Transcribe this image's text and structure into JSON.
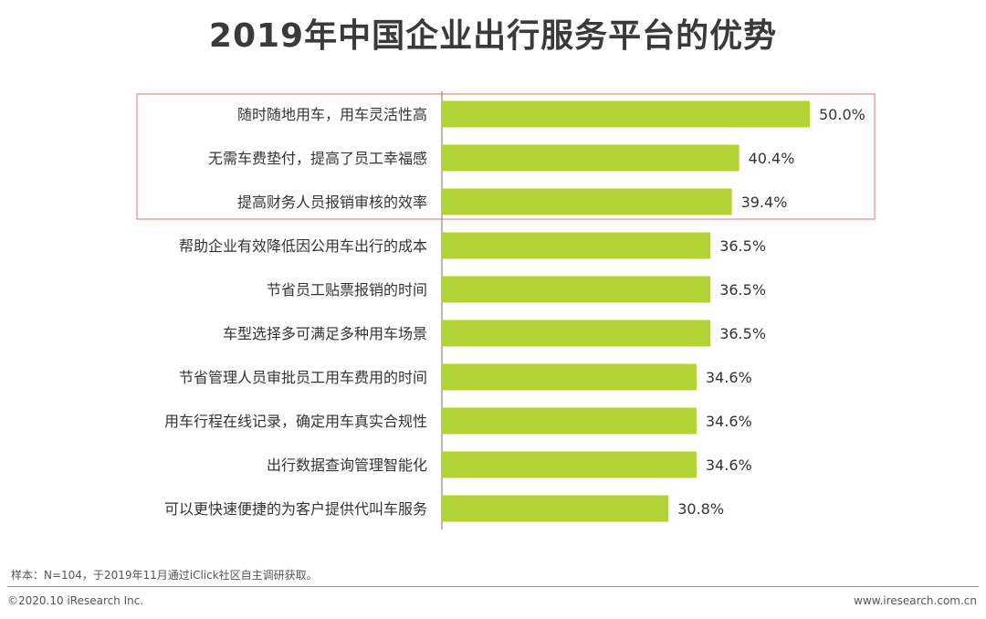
{
  "title": "2019年中国企业出行服务平台的优势",
  "chart_data": {
    "type": "bar",
    "orientation": "horizontal",
    "title": "2019年中国企业出行服务平台的优势",
    "xlabel": "",
    "ylabel": "",
    "xlim": [
      0,
      50
    ],
    "categories": [
      "随时随地用车，用车灵活性高",
      "无需车费垫付，提高了员工幸福感",
      "提高财务人员报销审核的效率",
      "帮助企业有效降低因公用车出行的成本",
      "节省员工贴票报销的时间",
      "车型选择多可满足多种用车场景",
      "节省管理人员审批员工用车费用的时间",
      "用车行程在线记录，确定用车真实合规性",
      "出行数据查询管理智能化",
      "可以更快速便捷的为客户提供代叫车服务"
    ],
    "values": [
      50.0,
      40.4,
      39.4,
      36.5,
      36.5,
      36.5,
      34.6,
      34.6,
      34.6,
      30.8
    ],
    "value_labels": [
      "50.0%",
      "40.4%",
      "39.4%",
      "36.5%",
      "36.5%",
      "36.5%",
      "34.6%",
      "34.6%",
      "34.6%",
      "30.8%"
    ],
    "highlighted_count": 3,
    "bar_color": "#b2d335",
    "highlight_border_color": "#e88a8a"
  },
  "footer": {
    "sample_note": "样本：N=104，于2019年11月通过iClick社区自主调研获取。",
    "copyright": "©2020.10 iResearch Inc.",
    "website": "www.iresearch.com.cn"
  }
}
